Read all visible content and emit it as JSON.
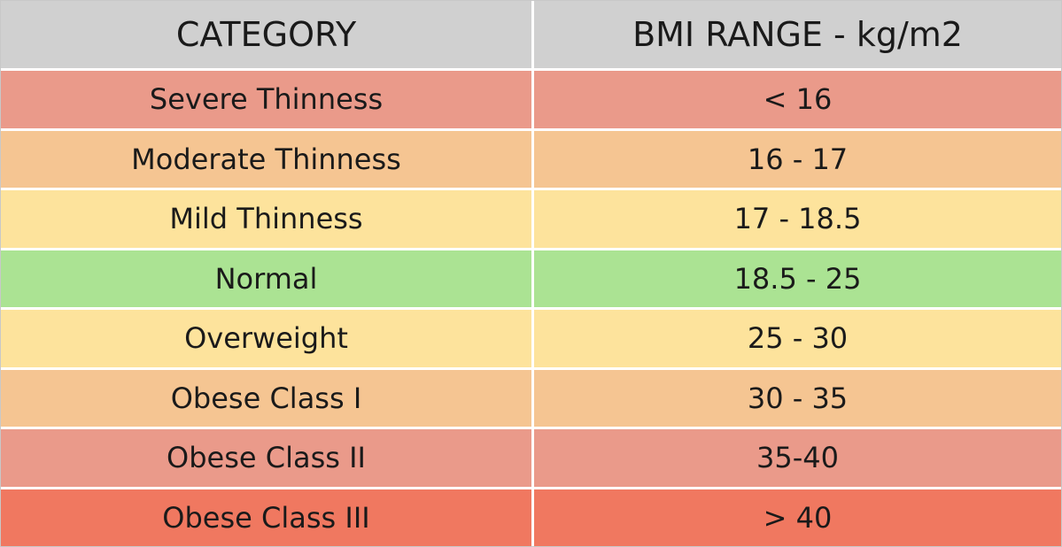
{
  "table": {
    "header": [
      "CATEGORY",
      "BMI RANGE - kg/m2"
    ],
    "rows": [
      [
        "Severe Thinness",
        "< 16"
      ],
      [
        "Moderate Thinness",
        "16 - 17"
      ],
      [
        "Mild Thinness",
        "17 - 18.5"
      ],
      [
        "Normal",
        "18.5 - 25"
      ],
      [
        "Overweight",
        "25 - 30"
      ],
      [
        "Obese Class I",
        "30 - 35"
      ],
      [
        "Obese Class II",
        "35-40"
      ],
      [
        "Obese Class III",
        "> 40"
      ]
    ]
  }
}
